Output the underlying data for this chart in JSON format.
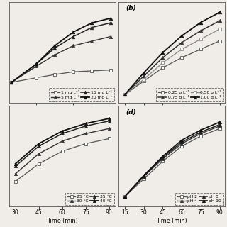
{
  "panel_a": {
    "label": "",
    "x": [
      10,
      30,
      45,
      60,
      75,
      90
    ],
    "series": [
      {
        "label": "1 mg L⁻¹",
        "y": [
          4.5,
          5.5,
          6.2,
          6.8,
          7.0,
          7.2
        ],
        "marker": "s",
        "lw": 1.0
      },
      {
        "label": "5 mg L⁻¹",
        "y": [
          4.5,
          8.0,
          10.5,
          12.5,
          13.5,
          14.5
        ],
        "marker": "+",
        "lw": 1.0
      },
      {
        "label": "15 mg L⁻¹",
        "y": [
          4.5,
          8.5,
          12.0,
          14.5,
          16.5,
          17.5
        ],
        "marker": "^",
        "lw": 1.0
      },
      {
        "label": "20 mg L⁻¹",
        "y": [
          4.5,
          8.5,
          12.5,
          15.5,
          17.5,
          18.5
        ],
        "marker": "+",
        "lw": 1.2
      }
    ],
    "xticks": [
      30,
      45,
      60,
      75,
      90
    ],
    "xlim": [
      8,
      94
    ],
    "ylim": [
      0,
      22
    ],
    "show_xlabel": false,
    "show_yticks": false
  },
  "panel_b": {
    "label": "(b)",
    "x": [
      15,
      30,
      45,
      60,
      75,
      90
    ],
    "series": [
      {
        "label": "0.25 g L⁻¹",
        "y": [
          2.5,
          6.5,
          10.5,
          13.5,
          16.0,
          18.5
        ],
        "marker": "s",
        "lw": 1.0
      },
      {
        "label": "0.75 g L⁻¹",
        "y": [
          2.5,
          8.0,
          13.5,
          18.0,
          21.5,
          24.5
        ],
        "marker": "^",
        "lw": 1.2
      },
      {
        "label": "0.50 g L⁻¹",
        "y": [
          2.5,
          7.0,
          12.0,
          16.0,
          19.0,
          22.0
        ],
        "marker": "s",
        "lw": 1.0
      },
      {
        "label": "1.00 g L⁻¹",
        "y": [
          2.5,
          9.0,
          15.0,
          20.0,
          24.0,
          27.0
        ],
        "marker": "+",
        "lw": 1.2
      }
    ],
    "xticks": [
      15,
      30,
      45,
      60,
      75,
      90
    ],
    "xlim": [
      10,
      94
    ],
    "ylim": [
      0,
      30
    ],
    "show_xlabel": false,
    "show_yticks": false
  },
  "panel_c": {
    "label": "",
    "x": [
      30,
      45,
      60,
      75,
      90
    ],
    "series": [
      {
        "label": "25 °C",
        "y": [
          5.0,
          8.5,
          11.0,
          12.5,
          13.5
        ],
        "marker": "s",
        "lw": 1.0
      },
      {
        "label": "30 °C",
        "y": [
          6.5,
          10.5,
          13.0,
          14.5,
          15.5
        ],
        "marker": "^",
        "lw": 1.0
      },
      {
        "label": "35 °C",
        "y": [
          8.0,
          12.0,
          14.5,
          16.0,
          17.0
        ],
        "marker": "^",
        "lw": 1.2
      },
      {
        "label": "40 °C",
        "y": [
          8.5,
          12.5,
          15.0,
          16.5,
          17.5
        ],
        "marker": "+",
        "lw": 1.2
      }
    ],
    "xticks": [
      30,
      45,
      60,
      75,
      90
    ],
    "xlim": [
      26,
      94
    ],
    "ylim": [
      0,
      20
    ],
    "show_xlabel": true,
    "show_yticks": false
  },
  "panel_d": {
    "label": "(d)",
    "x": [
      15,
      30,
      45,
      60,
      75,
      90
    ],
    "series": [
      {
        "label": "pH 2",
        "y": [
          2.0,
          5.5,
          9.0,
          12.0,
          14.0,
          15.5
        ],
        "marker": "s",
        "lw": 1.0
      },
      {
        "label": "pH 4",
        "y": [
          2.0,
          6.0,
          9.5,
          12.5,
          14.5,
          16.0
        ],
        "marker": "^",
        "lw": 1.0
      },
      {
        "label": "pH 8",
        "y": [
          2.0,
          6.0,
          9.8,
          12.8,
          14.8,
          16.3
        ],
        "marker": "^",
        "lw": 1.2
      },
      {
        "label": "pH 10",
        "y": [
          2.0,
          6.2,
          10.0,
          13.2,
          15.2,
          16.8
        ],
        "marker": "+",
        "lw": 1.2
      }
    ],
    "xticks": [
      15,
      30,
      45,
      60,
      75,
      90
    ],
    "xlim": [
      10,
      94
    ],
    "ylim": [
      0,
      20
    ],
    "show_xlabel": true,
    "show_yticks": false
  },
  "bg_color": "#f0ede8",
  "line_color": "#222222",
  "font_size": 5.5,
  "legend_font_size": 4.3,
  "label_font_size": 6.5,
  "xlabel": "Time (min)"
}
